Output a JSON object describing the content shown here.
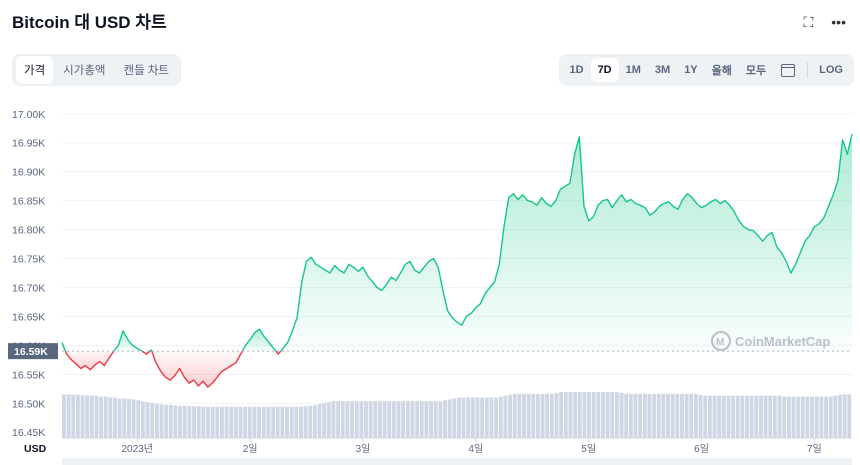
{
  "header": {
    "title": "Bitcoin 대 USD 차트"
  },
  "top_icons": {
    "fullscreen": "fullscreen-icon",
    "more": "more-icon"
  },
  "tabs": [
    {
      "label": "가격",
      "active": true
    },
    {
      "label": "시가총액",
      "active": false
    },
    {
      "label": "캔들 차트",
      "active": false
    }
  ],
  "ranges": [
    {
      "label": "1D",
      "active": false
    },
    {
      "label": "7D",
      "active": true
    },
    {
      "label": "1M",
      "active": false
    },
    {
      "label": "3M",
      "active": false
    },
    {
      "label": "1Y",
      "active": false
    },
    {
      "label": "올해",
      "active": false
    },
    {
      "label": "모두",
      "active": false
    }
  ],
  "log_label": "LOG",
  "watermark": "CoinMarketCap",
  "colors": {
    "up": "#16c784",
    "down": "#ea3943",
    "current_badge": "#58667e"
  },
  "chart_data": {
    "type": "area",
    "currency_label": "USD",
    "current_price_label": "16.59K",
    "baseline": 16590,
    "y_ticks": [
      "17.00K",
      "16.95K",
      "16.90K",
      "16.85K",
      "16.80K",
      "16.75K",
      "16.70K",
      "16.65K",
      "16.60K",
      "16.55K",
      "16.50K",
      "16.45K"
    ],
    "y_tick_values": [
      17000,
      16950,
      16900,
      16850,
      16800,
      16750,
      16700,
      16650,
      16600,
      16550,
      16500,
      16450
    ],
    "ylim": [
      16440,
      17010
    ],
    "x_ticks": [
      "2023년",
      "2일",
      "3일",
      "4일",
      "5일",
      "6일",
      "7일"
    ],
    "x_tick_hours": [
      16,
      40,
      64,
      88,
      112,
      136,
      160
    ],
    "xlim": [
      0,
      168
    ],
    "series": [
      {
        "x_hours": [
          0,
          1,
          2,
          3,
          4,
          5,
          6,
          7,
          8,
          9,
          10,
          11,
          12,
          13,
          14,
          15,
          16,
          17,
          18,
          19,
          20,
          21,
          22,
          23,
          24,
          25,
          26,
          27,
          28,
          29,
          30,
          31,
          32,
          33,
          34,
          35,
          36,
          37,
          38,
          39,
          40,
          41,
          42,
          43,
          44,
          45,
          46,
          47,
          48,
          49,
          50,
          51,
          52,
          53,
          54,
          55,
          56,
          57,
          58,
          59,
          60,
          61,
          62,
          63,
          64,
          65,
          66,
          67,
          68,
          69,
          70,
          71,
          72,
          73,
          74,
          75,
          76,
          77,
          78,
          79,
          80,
          81,
          82,
          83,
          84,
          85,
          86,
          87,
          88,
          89,
          90,
          91,
          92,
          93,
          94,
          95,
          96,
          97,
          98,
          99,
          100,
          101,
          102,
          103,
          104,
          105,
          106,
          107,
          108,
          109,
          110,
          111,
          112,
          113,
          114,
          115,
          116,
          117,
          118,
          119,
          120,
          121,
          122,
          123,
          124,
          125,
          126,
          127,
          128,
          129,
          130,
          131,
          132,
          133,
          134,
          135,
          136,
          137,
          138,
          139,
          140,
          141,
          142,
          143,
          144,
          145,
          146,
          147,
          148,
          149,
          150,
          151,
          152,
          153,
          154,
          155,
          156,
          157,
          158,
          159,
          160,
          161,
          162,
          163,
          164,
          165,
          166,
          167,
          168
        ],
        "price": [
          16605,
          16585,
          16575,
          16568,
          16560,
          16565,
          16558,
          16566,
          16572,
          16565,
          16578,
          16590,
          16600,
          16625,
          16610,
          16600,
          16595,
          16590,
          16585,
          16592,
          16570,
          16555,
          16545,
          16540,
          16548,
          16560,
          16545,
          16535,
          16540,
          16530,
          16538,
          16528,
          16535,
          16545,
          16555,
          16560,
          16565,
          16570,
          16585,
          16600,
          16610,
          16622,
          16628,
          16615,
          16605,
          16595,
          16585,
          16595,
          16605,
          16625,
          16648,
          16710,
          16745,
          16752,
          16740,
          16735,
          16730,
          16725,
          16738,
          16730,
          16725,
          16740,
          16735,
          16728,
          16735,
          16720,
          16710,
          16700,
          16695,
          16705,
          16718,
          16712,
          16725,
          16740,
          16745,
          16730,
          16725,
          16735,
          16745,
          16750,
          16735,
          16695,
          16660,
          16648,
          16640,
          16635,
          16650,
          16655,
          16665,
          16672,
          16690,
          16700,
          16710,
          16740,
          16805,
          16855,
          16862,
          16852,
          16860,
          16850,
          16848,
          16842,
          16855,
          16845,
          16840,
          16850,
          16870,
          16875,
          16880,
          16930,
          16960,
          16840,
          16815,
          16822,
          16842,
          16850,
          16852,
          16838,
          16850,
          16860,
          16848,
          16852,
          16845,
          16842,
          16838,
          16825,
          16830,
          16840,
          16845,
          16848,
          16840,
          16835,
          16852,
          16862,
          16855,
          16845,
          16838,
          16842,
          16848,
          16852,
          16845,
          16850,
          16842,
          16830,
          16815,
          16805,
          16800,
          16798,
          16790,
          16780,
          16790,
          16795,
          16770,
          16760,
          16745,
          16725,
          16740,
          16760,
          16780,
          16790,
          16805,
          16810,
          16820,
          16840,
          16860,
          16885,
          16955,
          16930,
          16965
        ]
      }
    ],
    "volume_relative": [
      0.95,
      0.95,
      0.94,
      0.94,
      0.93,
      0.93,
      0.92,
      0.92,
      0.9,
      0.9,
      0.88,
      0.88,
      0.86,
      0.86,
      0.85,
      0.84,
      0.82,
      0.8,
      0.78,
      0.76,
      0.74,
      0.73,
      0.72,
      0.72,
      0.71,
      0.7,
      0.7,
      0.69,
      0.69,
      0.69,
      0.68,
      0.68,
      0.68,
      0.68,
      0.68,
      0.68,
      0.68,
      0.68,
      0.68,
      0.68,
      0.68,
      0.68,
      0.68,
      0.68,
      0.68,
      0.68,
      0.68,
      0.68,
      0.68,
      0.68,
      0.68,
      0.68,
      0.69,
      0.7,
      0.72,
      0.74,
      0.76,
      0.78,
      0.8,
      0.8,
      0.8,
      0.8,
      0.8,
      0.8,
      0.8,
      0.8,
      0.8,
      0.8,
      0.8,
      0.8,
      0.8,
      0.8,
      0.8,
      0.8,
      0.8,
      0.8,
      0.8,
      0.8,
      0.8,
      0.8,
      0.8,
      0.8,
      0.82,
      0.84,
      0.86,
      0.88,
      0.88,
      0.88,
      0.88,
      0.88,
      0.88,
      0.88,
      0.88,
      0.88,
      0.9,
      0.92,
      0.94,
      0.96,
      0.96,
      0.96,
      0.96,
      0.96,
      0.96,
      0.96,
      0.96,
      0.96,
      0.98,
      1.0,
      1.0,
      1.0,
      1.0,
      1.0,
      1.0,
      1.0,
      1.0,
      1.0,
      1.0,
      1.0,
      1.0,
      1.0,
      0.98,
      0.96,
      0.96,
      0.96,
      0.96,
      0.96,
      0.96,
      0.96,
      0.96,
      0.96,
      0.96,
      0.96,
      0.96,
      0.96,
      0.96,
      0.96,
      0.96,
      0.94,
      0.92,
      0.92,
      0.92,
      0.92,
      0.92,
      0.92,
      0.92,
      0.92,
      0.92,
      0.92,
      0.92,
      0.92,
      0.92,
      0.92,
      0.92,
      0.92,
      0.92,
      0.9,
      0.9,
      0.9,
      0.9,
      0.9,
      0.9,
      0.9,
      0.9,
      0.9,
      0.9,
      0.9,
      0.92,
      0.94,
      0.95,
      0.95
    ]
  }
}
